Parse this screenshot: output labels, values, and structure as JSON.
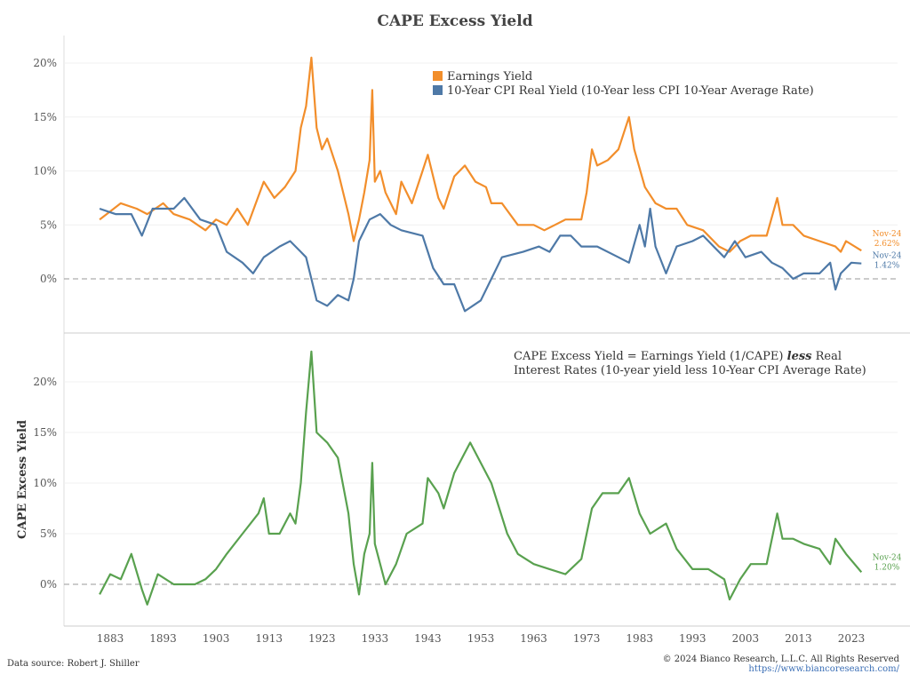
{
  "chart_data": [
    {
      "type": "line",
      "title": "CAPE Excess Yield",
      "xlim": [
        1874,
        2032
      ],
      "ylim": [
        -5,
        21
      ],
      "yticks": [
        "0%",
        "5%",
        "10%",
        "15%",
        "20%"
      ],
      "legend": "top-center",
      "series": [
        {
          "name": "Earnings Yield",
          "color": "#f28e2b",
          "end_label": "Nov-24",
          "end_value": "2.62%",
          "x": [
            1881,
            1885,
            1888,
            1890,
            1893,
            1895,
            1898,
            1901,
            1903,
            1905,
            1907,
            1909,
            1912,
            1914,
            1916,
            1918,
            1919,
            1920,
            1921,
            1922,
            1923,
            1924,
            1926,
            1928,
            1929,
            1930,
            1931,
            1932,
            1932.5,
            1933,
            1934,
            1935,
            1936,
            1937,
            1938,
            1940,
            1942,
            1943,
            1945,
            1946,
            1948,
            1950,
            1952,
            1954,
            1955,
            1957,
            1960,
            1963,
            1965,
            1967,
            1969,
            1972,
            1973,
            1974,
            1975,
            1977,
            1979,
            1981,
            1982,
            1984,
            1986,
            1988,
            1990,
            1992,
            1995,
            1998,
            2000,
            2002,
            2004,
            2007,
            2009,
            2010,
            2012,
            2014,
            2017,
            2020,
            2021,
            2022,
            2024.9
          ],
          "y": [
            5.5,
            7,
            6.5,
            6,
            7,
            6,
            5.5,
            4.5,
            5.5,
            5,
            6.5,
            5,
            9,
            7.5,
            8.5,
            10,
            14,
            16,
            20.5,
            14,
            12,
            13,
            10,
            6,
            3.5,
            5.5,
            8,
            11,
            17.5,
            9,
            10,
            8,
            7,
            6,
            9,
            7,
            10,
            11.5,
            7.5,
            6.5,
            9.5,
            10.5,
            9,
            8.5,
            7,
            7,
            5,
            5,
            4.5,
            5,
            5.5,
            5.5,
            8,
            12,
            10.5,
            11,
            12,
            15,
            12,
            8.5,
            7,
            6.5,
            6.5,
            5,
            4.5,
            3,
            2.5,
            3.5,
            4,
            4,
            7.5,
            5,
            5,
            4,
            3.5,
            3,
            2.5,
            3.5,
            2.62
          ]
        },
        {
          "name": "10-Year CPI Real Yield (10-Year less CPI 10-Year Average Rate)",
          "color": "#4e79a7",
          "end_label": "Nov-24",
          "end_value": "1.42%",
          "x": [
            1881,
            1884,
            1887,
            1889,
            1891,
            1895,
            1897,
            1900,
            1903,
            1905,
            1908,
            1910,
            1912,
            1915,
            1917,
            1919,
            1920,
            1921,
            1922,
            1924,
            1926,
            1928,
            1929,
            1930,
            1932,
            1934,
            1936,
            1938,
            1942,
            1944,
            1946,
            1948,
            1950,
            1953,
            1955,
            1957,
            1961,
            1964,
            1966,
            1968,
            1970,
            1972,
            1975,
            1979,
            1981,
            1983,
            1984,
            1985,
            1986,
            1988,
            1990,
            1993,
            1995,
            1997,
            1999,
            2001,
            2003,
            2006,
            2008,
            2010,
            2012,
            2014,
            2017,
            2019,
            2020,
            2021,
            2023,
            2024.9
          ],
          "y": [
            6.5,
            6,
            6,
            4,
            6.5,
            6.5,
            7.5,
            5.5,
            5,
            2.5,
            1.5,
            0.5,
            2,
            3,
            3.5,
            2.5,
            2,
            0,
            -2,
            -2.5,
            -1.5,
            -2,
            0,
            3.5,
            5.5,
            6,
            5,
            4.5,
            4,
            1,
            -0.5,
            -0.5,
            -3,
            -2,
            0,
            2,
            2.5,
            3,
            2.5,
            4,
            4,
            3,
            3,
            2,
            1.5,
            5,
            3,
            6.5,
            3,
            0.5,
            3,
            3.5,
            4,
            3,
            2,
            3.5,
            2,
            2.5,
            1.5,
            1,
            0,
            0.5,
            0.5,
            1.5,
            -1,
            0.5,
            1.5,
            1.42
          ]
        }
      ]
    },
    {
      "type": "line",
      "ylabel": "CAPE Excess Yield",
      "xlim": [
        1874,
        2032
      ],
      "ylim": [
        -5,
        24
      ],
      "yticks": [
        "0%",
        "5%",
        "10%",
        "15%",
        "20%"
      ],
      "xticks": [
        "1883",
        "1893",
        "1903",
        "1913",
        "1923",
        "1933",
        "1943",
        "1953",
        "1963",
        "1973",
        "1983",
        "1993",
        "2003",
        "2013",
        "2023"
      ],
      "annotation": [
        "CAPE Excess Yield = Earnings Yield (1/CAPE) ",
        "less",
        " Real",
        "Interest Rates (10-year yield less 10-Year CPI Average Rate)"
      ],
      "series": [
        {
          "color": "#59a14f",
          "end_label": "Nov-24",
          "end_value": "1.20%",
          "x": [
            1881,
            1883,
            1885,
            1887,
            1889,
            1890,
            1892,
            1895,
            1899,
            1901,
            1903,
            1905,
            1908,
            1911,
            1912,
            1913,
            1915,
            1917,
            1918,
            1919,
            1920,
            1921,
            1922,
            1924,
            1926,
            1928,
            1929,
            1930,
            1931,
            1932,
            1932.5,
            1933,
            1935,
            1937,
            1939,
            1942,
            1943,
            1945,
            1946,
            1948,
            1950,
            1951,
            1953,
            1955,
            1958,
            1960,
            1963,
            1966,
            1969,
            1972,
            1974,
            1976,
            1979,
            1981,
            1983,
            1985,
            1988,
            1990,
            1993,
            1996,
            1999,
            2000,
            2002,
            2004,
            2007,
            2009,
            2010,
            2012,
            2014,
            2017,
            2019,
            2020,
            2022,
            2024.9
          ],
          "y": [
            -1,
            1,
            0.5,
            3,
            -0.5,
            -2,
            1,
            0,
            0,
            0.5,
            1.5,
            3,
            5,
            7,
            8.5,
            5,
            5,
            7,
            6,
            10,
            17,
            23,
            15,
            14,
            12.5,
            7,
            2,
            -1,
            3,
            5,
            12,
            4,
            0,
            2,
            5,
            6,
            10.5,
            9,
            7.5,
            11,
            13,
            14,
            12,
            10,
            5,
            3,
            2,
            1.5,
            1,
            2.5,
            7.5,
            9,
            9,
            10.5,
            7,
            5,
            6,
            3.5,
            1.5,
            1.5,
            0.5,
            -1.5,
            0.5,
            2,
            2,
            7,
            4.5,
            4.5,
            4,
            3.5,
            2,
            4.5,
            3,
            1.2
          ]
        }
      ]
    }
  ],
  "footer": {
    "source": "Data source: Robert J. Shiller",
    "copyright": "© 2024 Bianco Research, L.L.C. All Rights Reserved",
    "url": "https://www.biancoresearch.com/"
  }
}
